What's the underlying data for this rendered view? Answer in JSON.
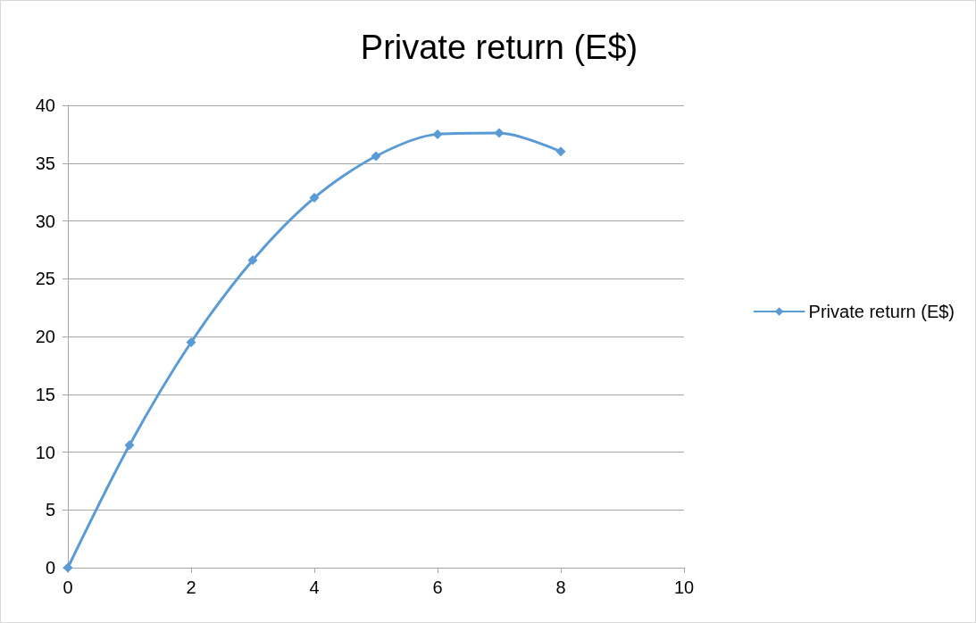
{
  "chart_data": {
    "type": "line",
    "title": "Private return (E$)",
    "x": [
      0,
      1,
      2,
      3,
      4,
      5,
      6,
      7,
      8
    ],
    "series": [
      {
        "name": "Private return (E$)",
        "color": "#5b9bd5",
        "values": [
          0,
          10.6,
          19.5,
          26.6,
          32.0,
          35.6,
          37.5,
          37.6,
          36.0
        ]
      }
    ],
    "xlim": [
      0,
      10
    ],
    "xticks": [
      0,
      2,
      4,
      6,
      8,
      10
    ],
    "ylim": [
      0,
      40
    ],
    "yticks": [
      0,
      5,
      10,
      15,
      20,
      25,
      30,
      35,
      40
    ],
    "grid": "y",
    "legend": "right",
    "marker": "diamond",
    "line_style": "solid"
  }
}
